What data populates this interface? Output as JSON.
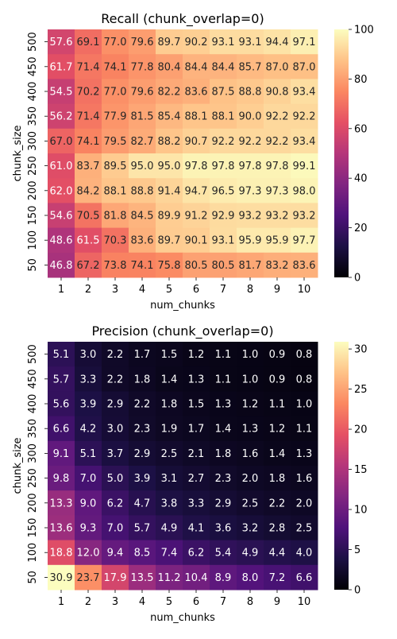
{
  "chart_data": [
    {
      "type": "heatmap",
      "title": "Recall (chunk_overlap=0)",
      "xlabel": "num_chunks",
      "ylabel": "chunk_size",
      "x": [
        "1",
        "2",
        "3",
        "4",
        "5",
        "6",
        "7",
        "8",
        "9",
        "10"
      ],
      "y": [
        "500",
        "450",
        "400",
        "350",
        "300",
        "250",
        "200",
        "150",
        "100",
        "50"
      ],
      "values": [
        [
          57.6,
          69.1,
          77.0,
          79.6,
          89.7,
          90.2,
          93.1,
          93.1,
          94.4,
          97.1
        ],
        [
          61.7,
          71.4,
          74.1,
          77.8,
          80.4,
          84.4,
          84.4,
          85.7,
          87.0,
          87.0
        ],
        [
          54.5,
          70.2,
          77.0,
          79.6,
          82.2,
          83.6,
          87.5,
          88.8,
          90.8,
          93.4
        ],
        [
          56.2,
          71.4,
          77.9,
          81.5,
          85.4,
          88.1,
          88.1,
          90.0,
          92.2,
          92.2
        ],
        [
          67.0,
          74.1,
          79.5,
          82.7,
          88.2,
          90.7,
          92.2,
          92.2,
          92.2,
          93.4
        ],
        [
          61.0,
          83.7,
          89.5,
          95.0,
          95.0,
          97.8,
          97.8,
          97.8,
          97.8,
          99.1
        ],
        [
          62.0,
          84.2,
          88.1,
          88.8,
          91.4,
          94.7,
          96.5,
          97.3,
          97.3,
          98.0
        ],
        [
          54.6,
          70.5,
          81.8,
          84.5,
          89.9,
          91.2,
          92.9,
          93.2,
          93.2,
          93.2
        ],
        [
          48.6,
          61.5,
          70.3,
          83.6,
          89.7,
          90.1,
          93.1,
          95.9,
          95.9,
          97.7
        ],
        [
          46.8,
          67.2,
          73.8,
          74.1,
          75.8,
          80.5,
          80.5,
          81.7,
          83.2,
          83.6
        ]
      ],
      "vmin": 0,
      "vmax": 100,
      "colorbar_ticks": [
        "0",
        "20",
        "40",
        "60",
        "80",
        "100"
      ],
      "colormap": "magma"
    },
    {
      "type": "heatmap",
      "title": "Precision (chunk_overlap=0)",
      "xlabel": "num_chunks",
      "ylabel": "chunk_size",
      "x": [
        "1",
        "2",
        "3",
        "4",
        "5",
        "6",
        "7",
        "8",
        "9",
        "10"
      ],
      "y": [
        "500",
        "450",
        "400",
        "350",
        "300",
        "250",
        "200",
        "150",
        "100",
        "50"
      ],
      "values": [
        [
          5.1,
          3.0,
          2.2,
          1.7,
          1.5,
          1.2,
          1.1,
          1.0,
          0.9,
          0.8
        ],
        [
          5.7,
          3.3,
          2.2,
          1.8,
          1.4,
          1.3,
          1.1,
          1.0,
          0.9,
          0.8
        ],
        [
          5.6,
          3.9,
          2.9,
          2.2,
          1.8,
          1.5,
          1.3,
          1.2,
          1.1,
          1.0
        ],
        [
          6.6,
          4.2,
          3.0,
          2.3,
          1.9,
          1.7,
          1.4,
          1.3,
          1.2,
          1.1
        ],
        [
          9.1,
          5.1,
          3.7,
          2.9,
          2.5,
          2.1,
          1.8,
          1.6,
          1.4,
          1.3
        ],
        [
          9.8,
          7.0,
          5.0,
          3.9,
          3.1,
          2.7,
          2.3,
          2.0,
          1.8,
          1.6
        ],
        [
          13.3,
          9.0,
          6.2,
          4.7,
          3.8,
          3.3,
          2.9,
          2.5,
          2.2,
          2.0
        ],
        [
          13.6,
          9.3,
          7.0,
          5.7,
          4.9,
          4.1,
          3.6,
          3.2,
          2.8,
          2.5
        ],
        [
          18.8,
          12.0,
          9.4,
          8.5,
          7.4,
          6.2,
          5.4,
          4.9,
          4.4,
          4.0
        ],
        [
          30.9,
          23.7,
          17.9,
          13.5,
          11.2,
          10.4,
          8.9,
          8.0,
          7.2,
          6.6
        ]
      ],
      "vmin": 0,
      "vmax": 30.9,
      "colorbar_ticks": [
        "0",
        "5",
        "10",
        "15",
        "20",
        "25",
        "30"
      ],
      "colormap": "magma"
    }
  ]
}
